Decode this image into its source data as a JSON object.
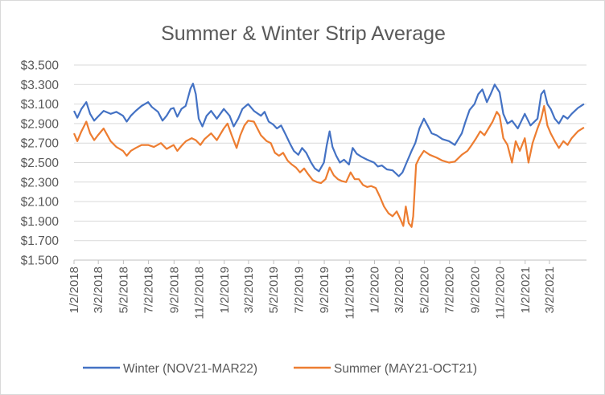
{
  "chart_data": {
    "type": "line",
    "title": "Summer & Winter Strip Average",
    "xlabel": "",
    "ylabel": "",
    "ylim": [
      1.5,
      3.5
    ],
    "y_ticks": [
      "$1.500",
      "$1.700",
      "$1.900",
      "$2.100",
      "$2.300",
      "$2.500",
      "$2.700",
      "$2.900",
      "$3.100",
      "$3.300",
      "$3.500"
    ],
    "x_ticks": [
      "1/2/2018",
      "3/2/2018",
      "5/2/2018",
      "7/2/2018",
      "9/2/2018",
      "11/2/2018",
      "1/2/2019",
      "3/2/2019",
      "5/2/2019",
      "7/2/2019",
      "9/2/2019",
      "11/2/2019",
      "1/2/2020",
      "3/2/2020",
      "5/2/2020",
      "7/2/2020",
      "9/2/2020",
      "11/2/2020",
      "1/2/2021",
      "3/2/2021"
    ],
    "x_range": [
      "2018-01-02",
      "2021-05-31"
    ],
    "grid": "horizontal",
    "legend_position": "bottom",
    "series": [
      {
        "name": "Winter (NOV21-MAR22)",
        "color": "#4472C4",
        "points": [
          [
            "2018-01-02",
            3.03
          ],
          [
            "2018-01-10",
            2.96
          ],
          [
            "2018-01-20",
            3.05
          ],
          [
            "2018-02-01",
            3.12
          ],
          [
            "2018-02-10",
            3.0
          ],
          [
            "2018-02-20",
            2.93
          ],
          [
            "2018-03-01",
            2.97
          ],
          [
            "2018-03-15",
            3.03
          ],
          [
            "2018-04-01",
            3.0
          ],
          [
            "2018-04-15",
            3.02
          ],
          [
            "2018-05-01",
            2.98
          ],
          [
            "2018-05-10",
            2.92
          ],
          [
            "2018-05-20",
            2.98
          ],
          [
            "2018-06-01",
            3.03
          ],
          [
            "2018-06-15",
            3.08
          ],
          [
            "2018-07-01",
            3.12
          ],
          [
            "2018-07-10",
            3.07
          ],
          [
            "2018-07-25",
            3.02
          ],
          [
            "2018-08-05",
            2.93
          ],
          [
            "2018-08-15",
            2.98
          ],
          [
            "2018-08-25",
            3.05
          ],
          [
            "2018-09-01",
            3.06
          ],
          [
            "2018-09-10",
            2.97
          ],
          [
            "2018-09-20",
            3.05
          ],
          [
            "2018-09-30",
            3.08
          ],
          [
            "2018-10-05",
            3.15
          ],
          [
            "2018-10-12",
            3.26
          ],
          [
            "2018-10-18",
            3.31
          ],
          [
            "2018-10-25",
            3.2
          ],
          [
            "2018-11-01",
            2.95
          ],
          [
            "2018-11-10",
            2.87
          ],
          [
            "2018-11-20",
            2.98
          ],
          [
            "2018-12-01",
            3.03
          ],
          [
            "2018-12-15",
            2.95
          ],
          [
            "2019-01-01",
            3.05
          ],
          [
            "2019-01-15",
            2.98
          ],
          [
            "2019-01-25",
            2.87
          ],
          [
            "2019-02-05",
            2.95
          ],
          [
            "2019-02-15",
            3.05
          ],
          [
            "2019-03-01",
            3.1
          ],
          [
            "2019-03-15",
            3.03
          ],
          [
            "2019-04-01",
            2.98
          ],
          [
            "2019-04-10",
            3.02
          ],
          [
            "2019-04-20",
            2.92
          ],
          [
            "2019-05-01",
            2.89
          ],
          [
            "2019-05-10",
            2.85
          ],
          [
            "2019-05-20",
            2.88
          ],
          [
            "2019-06-01",
            2.78
          ],
          [
            "2019-06-10",
            2.7
          ],
          [
            "2019-06-20",
            2.62
          ],
          [
            "2019-07-01",
            2.58
          ],
          [
            "2019-07-10",
            2.65
          ],
          [
            "2019-07-20",
            2.6
          ],
          [
            "2019-08-01",
            2.5
          ],
          [
            "2019-08-10",
            2.44
          ],
          [
            "2019-08-20",
            2.41
          ],
          [
            "2019-09-01",
            2.5
          ],
          [
            "2019-09-08",
            2.68
          ],
          [
            "2019-09-15",
            2.82
          ],
          [
            "2019-09-22",
            2.66
          ],
          [
            "2019-10-01",
            2.57
          ],
          [
            "2019-10-10",
            2.5
          ],
          [
            "2019-10-20",
            2.53
          ],
          [
            "2019-11-01",
            2.48
          ],
          [
            "2019-11-10",
            2.65
          ],
          [
            "2019-11-20",
            2.59
          ],
          [
            "2019-12-01",
            2.56
          ],
          [
            "2019-12-15",
            2.53
          ],
          [
            "2020-01-01",
            2.5
          ],
          [
            "2020-01-10",
            2.46
          ],
          [
            "2020-01-20",
            2.47
          ],
          [
            "2020-02-01",
            2.43
          ],
          [
            "2020-02-15",
            2.42
          ],
          [
            "2020-03-01",
            2.36
          ],
          [
            "2020-03-10",
            2.4
          ],
          [
            "2020-03-20",
            2.5
          ],
          [
            "2020-04-01",
            2.62
          ],
          [
            "2020-04-10",
            2.7
          ],
          [
            "2020-04-20",
            2.85
          ],
          [
            "2020-05-01",
            2.95
          ],
          [
            "2020-05-10",
            2.88
          ],
          [
            "2020-05-20",
            2.8
          ],
          [
            "2020-06-01",
            2.78
          ],
          [
            "2020-06-15",
            2.74
          ],
          [
            "2020-07-01",
            2.72
          ],
          [
            "2020-07-15",
            2.68
          ],
          [
            "2020-08-01",
            2.8
          ],
          [
            "2020-08-10",
            2.92
          ],
          [
            "2020-08-20",
            3.04
          ],
          [
            "2020-09-01",
            3.1
          ],
          [
            "2020-09-10",
            3.2
          ],
          [
            "2020-09-20",
            3.25
          ],
          [
            "2020-10-01",
            3.12
          ],
          [
            "2020-10-10",
            3.2
          ],
          [
            "2020-10-20",
            3.3
          ],
          [
            "2020-11-01",
            3.22
          ],
          [
            "2020-11-10",
            3.0
          ],
          [
            "2020-11-20",
            2.9
          ],
          [
            "2020-12-01",
            2.93
          ],
          [
            "2020-12-15",
            2.85
          ],
          [
            "2021-01-01",
            3.0
          ],
          [
            "2021-01-15",
            2.88
          ],
          [
            "2021-02-01",
            2.95
          ],
          [
            "2021-02-10",
            3.2
          ],
          [
            "2021-02-17",
            3.24
          ],
          [
            "2021-02-25",
            3.1
          ],
          [
            "2021-03-05",
            3.05
          ],
          [
            "2021-03-15",
            2.95
          ],
          [
            "2021-03-25",
            2.9
          ],
          [
            "2021-04-05",
            2.98
          ],
          [
            "2021-04-15",
            2.95
          ],
          [
            "2021-04-25",
            3.0
          ],
          [
            "2021-05-10",
            3.06
          ],
          [
            "2021-05-25",
            3.1
          ]
        ]
      },
      {
        "name": "Summer  (MAY21-OCT21)",
        "color": "#ED7D31",
        "points": [
          [
            "2018-01-02",
            2.8
          ],
          [
            "2018-01-10",
            2.72
          ],
          [
            "2018-01-20",
            2.82
          ],
          [
            "2018-02-01",
            2.92
          ],
          [
            "2018-02-10",
            2.8
          ],
          [
            "2018-02-20",
            2.73
          ],
          [
            "2018-03-01",
            2.78
          ],
          [
            "2018-03-15",
            2.85
          ],
          [
            "2018-04-01",
            2.72
          ],
          [
            "2018-04-15",
            2.66
          ],
          [
            "2018-05-01",
            2.62
          ],
          [
            "2018-05-10",
            2.57
          ],
          [
            "2018-05-20",
            2.62
          ],
          [
            "2018-06-01",
            2.65
          ],
          [
            "2018-06-15",
            2.68
          ],
          [
            "2018-07-01",
            2.68
          ],
          [
            "2018-07-15",
            2.66
          ],
          [
            "2018-08-01",
            2.7
          ],
          [
            "2018-08-15",
            2.64
          ],
          [
            "2018-09-01",
            2.68
          ],
          [
            "2018-09-10",
            2.62
          ],
          [
            "2018-09-20",
            2.67
          ],
          [
            "2018-10-01",
            2.72
          ],
          [
            "2018-10-15",
            2.75
          ],
          [
            "2018-10-25",
            2.73
          ],
          [
            "2018-11-05",
            2.68
          ],
          [
            "2018-11-15",
            2.74
          ],
          [
            "2018-12-01",
            2.8
          ],
          [
            "2018-12-15",
            2.73
          ],
          [
            "2019-01-01",
            2.85
          ],
          [
            "2019-01-10",
            2.9
          ],
          [
            "2019-01-20",
            2.78
          ],
          [
            "2019-02-01",
            2.65
          ],
          [
            "2019-02-10",
            2.78
          ],
          [
            "2019-02-20",
            2.88
          ],
          [
            "2019-03-01",
            2.93
          ],
          [
            "2019-03-15",
            2.92
          ],
          [
            "2019-04-01",
            2.78
          ],
          [
            "2019-04-15",
            2.72
          ],
          [
            "2019-04-25",
            2.7
          ],
          [
            "2019-05-05",
            2.6
          ],
          [
            "2019-05-15",
            2.57
          ],
          [
            "2019-05-25",
            2.6
          ],
          [
            "2019-06-05",
            2.52
          ],
          [
            "2019-06-15",
            2.48
          ],
          [
            "2019-06-25",
            2.45
          ],
          [
            "2019-07-05",
            2.4
          ],
          [
            "2019-07-15",
            2.44
          ],
          [
            "2019-07-25",
            2.38
          ],
          [
            "2019-08-05",
            2.32
          ],
          [
            "2019-08-15",
            2.3
          ],
          [
            "2019-08-25",
            2.29
          ],
          [
            "2019-09-05",
            2.33
          ],
          [
            "2019-09-15",
            2.45
          ],
          [
            "2019-09-25",
            2.37
          ],
          [
            "2019-10-05",
            2.33
          ],
          [
            "2019-10-15",
            2.31
          ],
          [
            "2019-10-25",
            2.3
          ],
          [
            "2019-11-05",
            2.4
          ],
          [
            "2019-11-15",
            2.33
          ],
          [
            "2019-11-25",
            2.33
          ],
          [
            "2019-12-05",
            2.27
          ],
          [
            "2019-12-15",
            2.25
          ],
          [
            "2019-12-25",
            2.26
          ],
          [
            "2020-01-05",
            2.24
          ],
          [
            "2020-01-15",
            2.15
          ],
          [
            "2020-01-25",
            2.05
          ],
          [
            "2020-02-05",
            1.98
          ],
          [
            "2020-02-15",
            1.95
          ],
          [
            "2020-02-25",
            2.0
          ],
          [
            "2020-03-05",
            1.92
          ],
          [
            "2020-03-12",
            1.85
          ],
          [
            "2020-03-18",
            2.05
          ],
          [
            "2020-03-25",
            1.88
          ],
          [
            "2020-04-01",
            1.84
          ],
          [
            "2020-04-05",
            1.95
          ],
          [
            "2020-04-12",
            2.48
          ],
          [
            "2020-04-20",
            2.55
          ],
          [
            "2020-05-01",
            2.62
          ],
          [
            "2020-05-15",
            2.58
          ],
          [
            "2020-06-01",
            2.55
          ],
          [
            "2020-06-15",
            2.52
          ],
          [
            "2020-07-01",
            2.5
          ],
          [
            "2020-07-15",
            2.51
          ],
          [
            "2020-08-01",
            2.58
          ],
          [
            "2020-08-15",
            2.62
          ],
          [
            "2020-08-25",
            2.68
          ],
          [
            "2020-09-05",
            2.75
          ],
          [
            "2020-09-15",
            2.82
          ],
          [
            "2020-09-25",
            2.78
          ],
          [
            "2020-10-05",
            2.85
          ],
          [
            "2020-10-15",
            2.92
          ],
          [
            "2020-10-25",
            3.02
          ],
          [
            "2020-11-01",
            2.98
          ],
          [
            "2020-11-10",
            2.75
          ],
          [
            "2020-11-20",
            2.68
          ],
          [
            "2020-12-01",
            2.5
          ],
          [
            "2020-12-10",
            2.72
          ],
          [
            "2020-12-20",
            2.62
          ],
          [
            "2021-01-01",
            2.75
          ],
          [
            "2021-01-10",
            2.5
          ],
          [
            "2021-01-20",
            2.7
          ],
          [
            "2021-02-01",
            2.85
          ],
          [
            "2021-02-10",
            2.95
          ],
          [
            "2021-02-17",
            3.08
          ],
          [
            "2021-02-25",
            2.88
          ],
          [
            "2021-03-05",
            2.8
          ],
          [
            "2021-03-15",
            2.72
          ],
          [
            "2021-03-25",
            2.65
          ],
          [
            "2021-04-05",
            2.72
          ],
          [
            "2021-04-15",
            2.68
          ],
          [
            "2021-04-25",
            2.75
          ],
          [
            "2021-05-10",
            2.82
          ],
          [
            "2021-05-25",
            2.86
          ]
        ]
      }
    ]
  }
}
